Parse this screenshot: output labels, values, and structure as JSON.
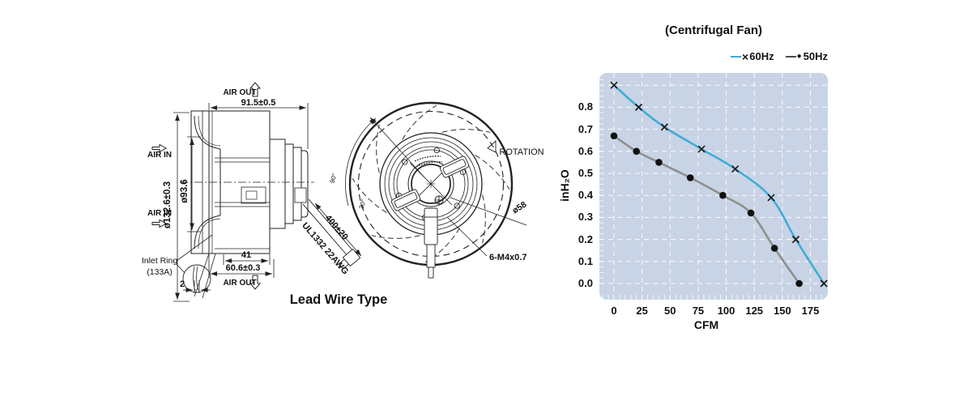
{
  "page": {
    "background": "#ffffff"
  },
  "drawing": {
    "caption": "Lead Wire Type",
    "labels": {
      "air_out_top": "AIR OUT",
      "air_in_upper": "AIR IN",
      "air_in_lower": "AIR IN",
      "air_out_bottom": "AIR OUT",
      "inlet_ring_line1": "Inlet Ring",
      "inlet_ring_line2": "(133A)",
      "rotation": "ROTATION"
    },
    "dimensions": {
      "depth": "91.5±0.5",
      "outer_diameter": "ø132.6±0.3",
      "inlet_diameter": "ø93.6",
      "impeller_width": "41",
      "base_width": "60.6±0.3",
      "ring_thickness": "2",
      "wire_length": "400±20",
      "wire_spec": "UL1332 22AWG",
      "hub_diameter": "ø58",
      "screw_spec": "6-M4x0.7",
      "angle_90": "90°",
      "angle_30": "30°"
    }
  },
  "chart": {
    "title": "(Centrifugal Fan)",
    "xlabel": "CFM",
    "ylabel": "inH₂O",
    "legend_markers": {
      "x": "×",
      "dot": "●"
    },
    "colors": {
      "plot_bg": "#c8d4e5",
      "grid": "#ffffff"
    }
  },
  "chart_data": {
    "type": "line",
    "title": "(Centrifugal Fan)",
    "xlabel": "CFM",
    "ylabel": "inH2O",
    "x_ticks": [
      0,
      25,
      50,
      75,
      100,
      125,
      150,
      175
    ],
    "y_ticks": [
      0,
      0.1,
      0.2,
      0.3,
      0.4,
      0.5,
      0.6,
      0.7,
      0.8
    ],
    "y_gridlines": [
      0,
      0.1,
      0.2,
      0.3,
      0.4,
      0.5,
      0.6,
      0.7,
      0.8,
      0.9
    ],
    "xlim": [
      -13,
      190.6
    ],
    "ylim": [
      -0.074,
      0.955
    ],
    "grid": "white-dashed",
    "legend_position": "top-right",
    "series": [
      {
        "name": "60Hz",
        "marker": "x",
        "line_color": "#41abd6",
        "legend_line_color": "#41abd6",
        "marker_color": "#1a1a1a",
        "points": [
          [
            0,
            0.9
          ],
          [
            22,
            0.8
          ],
          [
            45,
            0.71
          ],
          [
            78,
            0.61
          ],
          [
            108,
            0.52
          ],
          [
            140,
            0.39
          ],
          [
            162,
            0.2
          ],
          [
            187,
            0.0
          ]
        ]
      },
      {
        "name": "50Hz",
        "marker": "dot",
        "line_color": "#8f8f8f",
        "legend_line_color": "#4a4a4a",
        "marker_color": "#111111",
        "points": [
          [
            0,
            0.67
          ],
          [
            20,
            0.6
          ],
          [
            40,
            0.55
          ],
          [
            68,
            0.48
          ],
          [
            97,
            0.4
          ],
          [
            122,
            0.32
          ],
          [
            143,
            0.16
          ],
          [
            165,
            0.0
          ]
        ]
      }
    ]
  }
}
